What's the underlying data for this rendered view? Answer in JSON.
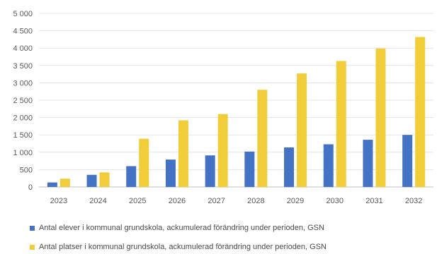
{
  "chart_data": {
    "type": "bar",
    "categories": [
      "2023",
      "2024",
      "2025",
      "2026",
      "2027",
      "2028",
      "2029",
      "2030",
      "2031",
      "2032"
    ],
    "series": [
      {
        "name": "Antal elever i kommunal grundskola, ackumulerad förändring under perioden, GSN",
        "color": "#4472C4",
        "values": [
          130,
          350,
          600,
          790,
          910,
          1020,
          1140,
          1230,
          1360,
          1500
        ]
      },
      {
        "name": "Antal platser i kommunal grundskola, ackumulerad förändring under perioden, GSN",
        "color": "#F2CD3A",
        "values": [
          240,
          420,
          1390,
          1920,
          2100,
          2800,
          3270,
          3630,
          3990,
          4320
        ]
      }
    ],
    "yticks": [
      "0",
      "500",
      "1 000",
      "1 500",
      "2 000",
      "2 500",
      "3 000",
      "3 500",
      "4 000",
      "4 500",
      "5 000"
    ],
    "ylim": [
      0,
      5000
    ],
    "grid": true,
    "legend_position": "bottom",
    "title": "",
    "xlabel": "",
    "ylabel": ""
  }
}
